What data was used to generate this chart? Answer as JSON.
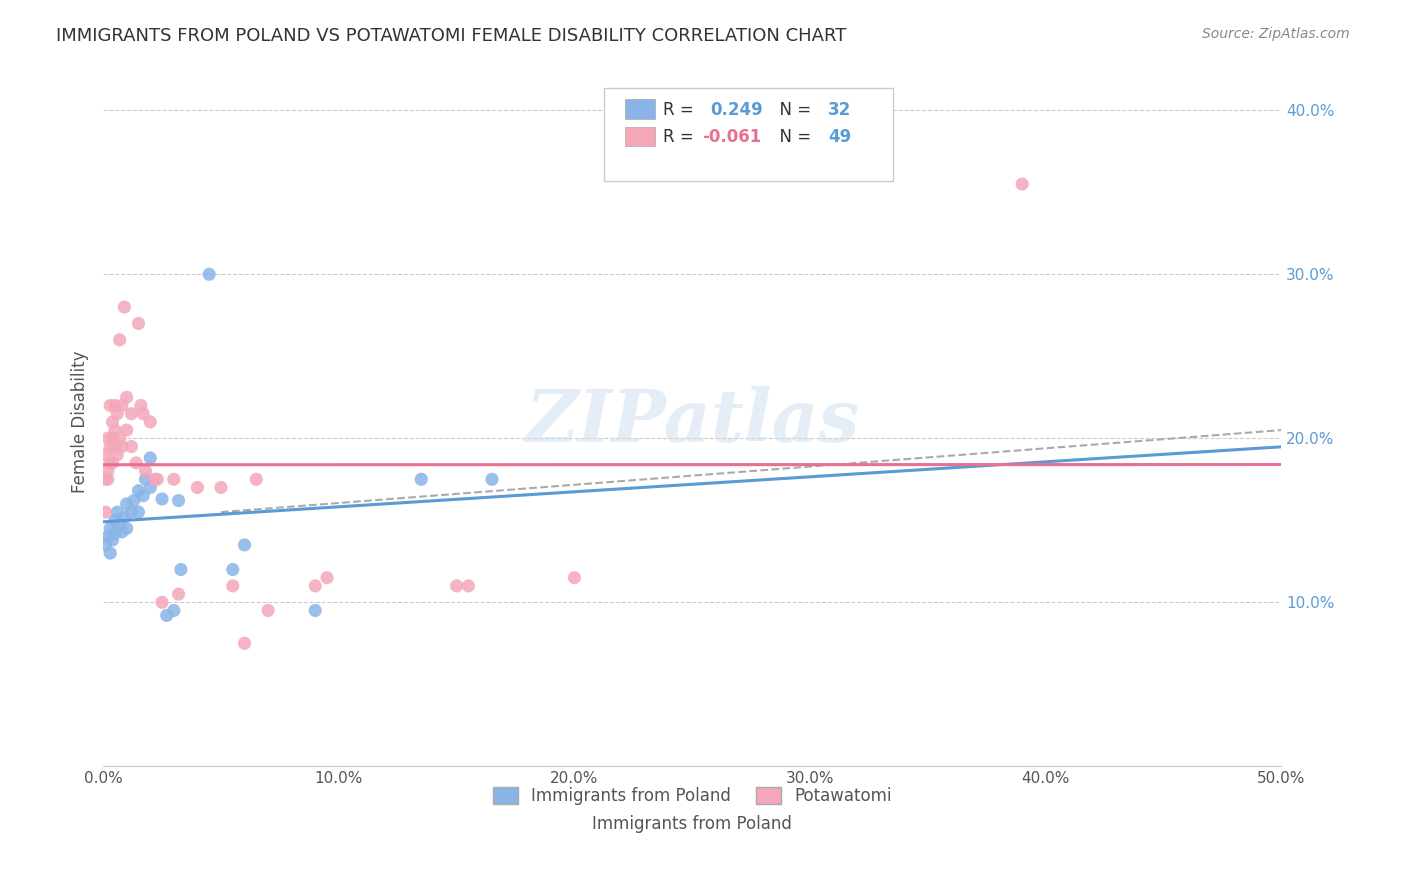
{
  "title": "IMMIGRANTS FROM POLAND VS POTAWATOMI FEMALE DISABILITY CORRELATION CHART",
  "source": "Source: ZipAtlas.com",
  "xlabel_bottom": "",
  "ylabel": "Female Disability",
  "x_min": 0.0,
  "x_max": 0.5,
  "y_min": 0.0,
  "y_max": 0.42,
  "x_ticks": [
    0.0,
    0.1,
    0.2,
    0.3,
    0.4,
    0.5
  ],
  "x_tick_labels": [
    "0.0%",
    "10.0%",
    "20.0%",
    "30.0%",
    "40.0%",
    "50.0%"
  ],
  "y_ticks_right": [
    0.1,
    0.2,
    0.3,
    0.4
  ],
  "y_tick_labels_right": [
    "10.0%",
    "20.0%",
    "30.0%",
    "40.0%"
  ],
  "legend_r1": "R =  0.249   N = 32",
  "legend_r2": "R = -0.061   N = 49",
  "color_blue": "#8ab4e8",
  "color_pink": "#f4a7b9",
  "trendline_blue": "#5b9bd5",
  "trendline_pink": "#e87090",
  "trendline_dashed": "#aaaaaa",
  "watermark": "ZIPatlas",
  "blue_scatter": [
    [
      0.001,
      0.135
    ],
    [
      0.002,
      0.14
    ],
    [
      0.003,
      0.13
    ],
    [
      0.003,
      0.145
    ],
    [
      0.004,
      0.138
    ],
    [
      0.005,
      0.15
    ],
    [
      0.005,
      0.142
    ],
    [
      0.006,
      0.155
    ],
    [
      0.007,
      0.148
    ],
    [
      0.008,
      0.143
    ],
    [
      0.009,
      0.152
    ],
    [
      0.01,
      0.16
    ],
    [
      0.01,
      0.145
    ],
    [
      0.012,
      0.155
    ],
    [
      0.013,
      0.162
    ],
    [
      0.015,
      0.168
    ],
    [
      0.015,
      0.155
    ],
    [
      0.017,
      0.165
    ],
    [
      0.018,
      0.175
    ],
    [
      0.02,
      0.17
    ],
    [
      0.02,
      0.188
    ],
    [
      0.025,
      0.163
    ],
    [
      0.027,
      0.092
    ],
    [
      0.03,
      0.095
    ],
    [
      0.032,
      0.162
    ],
    [
      0.033,
      0.12
    ],
    [
      0.045,
      0.3
    ],
    [
      0.055,
      0.12
    ],
    [
      0.06,
      0.135
    ],
    [
      0.09,
      0.095
    ],
    [
      0.135,
      0.175
    ],
    [
      0.165,
      0.175
    ]
  ],
  "pink_scatter": [
    [
      0.001,
      0.155
    ],
    [
      0.001,
      0.175
    ],
    [
      0.001,
      0.19
    ],
    [
      0.002,
      0.175
    ],
    [
      0.002,
      0.18
    ],
    [
      0.002,
      0.2
    ],
    [
      0.003,
      0.185
    ],
    [
      0.003,
      0.195
    ],
    [
      0.003,
      0.22
    ],
    [
      0.004,
      0.185
    ],
    [
      0.004,
      0.2
    ],
    [
      0.004,
      0.21
    ],
    [
      0.005,
      0.195
    ],
    [
      0.005,
      0.205
    ],
    [
      0.005,
      0.22
    ],
    [
      0.006,
      0.19
    ],
    [
      0.006,
      0.215
    ],
    [
      0.007,
      0.2
    ],
    [
      0.007,
      0.26
    ],
    [
      0.008,
      0.195
    ],
    [
      0.008,
      0.22
    ],
    [
      0.009,
      0.28
    ],
    [
      0.01,
      0.205
    ],
    [
      0.01,
      0.225
    ],
    [
      0.012,
      0.195
    ],
    [
      0.012,
      0.215
    ],
    [
      0.014,
      0.185
    ],
    [
      0.015,
      0.27
    ],
    [
      0.016,
      0.22
    ],
    [
      0.017,
      0.215
    ],
    [
      0.018,
      0.18
    ],
    [
      0.02,
      0.21
    ],
    [
      0.022,
      0.175
    ],
    [
      0.023,
      0.175
    ],
    [
      0.025,
      0.1
    ],
    [
      0.03,
      0.175
    ],
    [
      0.032,
      0.105
    ],
    [
      0.04,
      0.17
    ],
    [
      0.05,
      0.17
    ],
    [
      0.055,
      0.11
    ],
    [
      0.06,
      0.075
    ],
    [
      0.065,
      0.175
    ],
    [
      0.07,
      0.095
    ],
    [
      0.09,
      0.11
    ],
    [
      0.095,
      0.115
    ],
    [
      0.15,
      0.11
    ],
    [
      0.155,
      0.11
    ],
    [
      0.2,
      0.115
    ],
    [
      0.39,
      0.355
    ]
  ]
}
